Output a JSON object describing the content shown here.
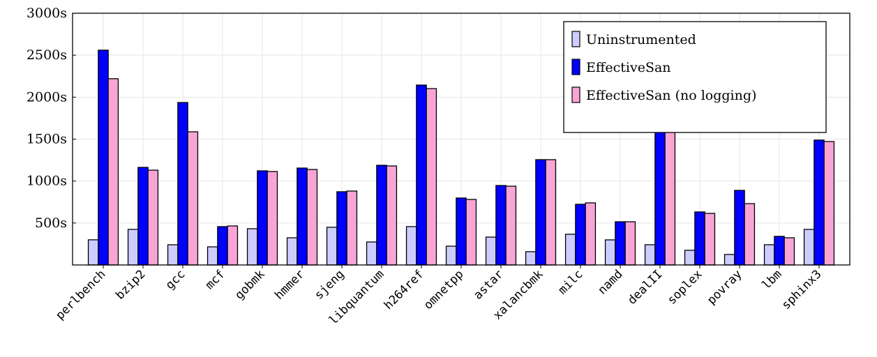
{
  "chart_data": {
    "type": "bar",
    "title": "",
    "xlabel": "",
    "ylabel": "",
    "ylim": [
      0,
      3000
    ],
    "yticks": [
      500,
      1000,
      1500,
      2000,
      2500,
      3000
    ],
    "ytick_labels": [
      "500s",
      "1000s",
      "1500s",
      "2000s",
      "2500s",
      "3000s"
    ],
    "grid": true,
    "legend_position": "top-right",
    "categories": [
      "perlbench",
      "bzip2",
      "gcc",
      "mcf",
      "gobmk",
      "hmmer",
      "sjeng",
      "libquantum",
      "h264ref",
      "omnetpp",
      "astar",
      "xalancbmk",
      "milc",
      "namd",
      "dealII",
      "soplex",
      "povray",
      "lbm",
      "sphinx3"
    ],
    "series": [
      {
        "name": "Uninstrumented",
        "color": "#ccccff",
        "values": [
          300,
          424,
          241,
          216,
          432,
          324,
          449,
          274,
          457,
          224,
          332,
          158,
          366,
          299,
          241,
          175,
          125,
          241,
          424
        ]
      },
      {
        "name": "EffectiveSan",
        "color": "#0000ff",
        "values": [
          2560,
          1163,
          1936,
          457,
          1122,
          1155,
          873,
          1188,
          2144,
          798,
          947,
          1255,
          723,
          515,
          1604,
          632,
          889,
          341,
          1488
        ]
      },
      {
        "name": "EffectiveSan (no logging)",
        "color": "#f8a5d6",
        "values": [
          2220,
          1130,
          1587,
          465,
          1114,
          1138,
          881,
          1180,
          2102,
          781,
          939,
          1255,
          740,
          515,
          1637,
          615,
          731,
          324,
          1471
        ]
      }
    ]
  }
}
